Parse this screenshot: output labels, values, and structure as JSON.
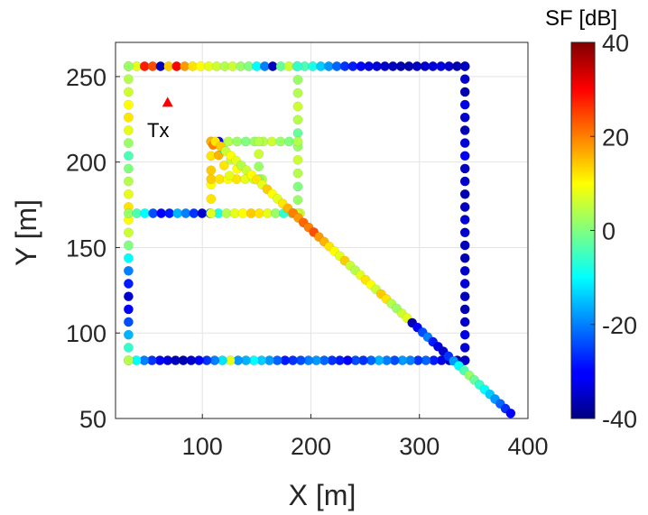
{
  "chart_data": {
    "type": "scatter",
    "xlabel": "X [m]",
    "ylabel": "Y [m]",
    "xlim": [
      20,
      400
    ],
    "ylim": [
      50,
      270
    ],
    "xticks": [
      100,
      200,
      300,
      400
    ],
    "yticks": [
      50,
      100,
      150,
      200,
      250
    ],
    "grid": true,
    "colorbar": {
      "label": "SF [dB]",
      "range": [
        -40,
        40
      ],
      "ticks": [
        40,
        20,
        0,
        -20,
        -40
      ],
      "colormap": "jet"
    },
    "transmitter": {
      "label": "Tx",
      "x": 68,
      "y": 235,
      "color": "#ff0000"
    },
    "segments": [
      {
        "name": "top-edge",
        "from": [
          32,
          256
        ],
        "to": [
          342,
          256
        ],
        "sf": [
          10,
          8,
          28,
          24,
          -35,
          14,
          30,
          18,
          12,
          10,
          8,
          6,
          4,
          6,
          2,
          0,
          -10,
          -20,
          -35,
          -2,
          6,
          0,
          -4,
          -8,
          -14,
          -18,
          -22,
          -26,
          -28,
          -30,
          -32,
          -33,
          -34,
          -35,
          -36,
          -36,
          -35,
          -34,
          -33,
          -32,
          -34,
          -36,
          -35
        ]
      },
      {
        "name": "right-edge",
        "from": [
          342,
          256
        ],
        "to": [
          342,
          84
        ],
        "sf": [
          -35,
          -34,
          -36,
          -32,
          -34,
          -36,
          -33,
          -31,
          -35,
          -34,
          -36,
          -35,
          -33,
          -34,
          -35,
          -36,
          -34,
          -33,
          -35,
          -36,
          -34,
          -32,
          -33,
          -35
        ]
      },
      {
        "name": "bottom-edge",
        "from": [
          342,
          84
        ],
        "to": [
          32,
          84
        ],
        "sf": [
          -34,
          -36,
          -35,
          -32,
          -28,
          -22,
          -26,
          -20,
          -18,
          -24,
          -20,
          -16,
          -22,
          -26,
          -24,
          -30,
          -28,
          -26,
          -22,
          -18,
          -20,
          -24,
          -26,
          -28,
          -22,
          -18,
          -14,
          -10,
          -16,
          -18,
          8,
          -12,
          -20,
          -26,
          -30,
          -34,
          -36,
          -35,
          -33,
          -30,
          -26,
          -20,
          -10,
          4
        ]
      },
      {
        "name": "left-edge",
        "from": [
          32,
          84
        ],
        "to": [
          32,
          256
        ],
        "sf": [
          4,
          -6,
          -16,
          -24,
          -30,
          -34,
          -28,
          -20,
          -10,
          0,
          6,
          10,
          12,
          8,
          4,
          0,
          -4,
          2,
          8,
          12,
          10,
          6,
          4,
          2
        ]
      },
      {
        "name": "mid-horizontal",
        "from": [
          32,
          170
        ],
        "to": [
          190,
          170
        ],
        "sf": [
          2,
          -4,
          -10,
          -24,
          -30,
          -28,
          -16,
          -20,
          -26,
          -34,
          -24,
          -8,
          4,
          8,
          10,
          14,
          12,
          8,
          2,
          -6,
          -4,
          6
        ]
      },
      {
        "name": "inner-vertical",
        "from": [
          188,
          170
        ],
        "to": [
          188,
          256
        ],
        "sf": [
          6,
          2,
          0,
          4,
          6,
          2,
          -2,
          4,
          6,
          4,
          2,
          -6
        ]
      },
      {
        "name": "small-square-top",
        "from": [
          108,
          212
        ],
        "to": [
          188,
          212
        ],
        "sf": [
          14,
          10,
          4,
          2,
          0,
          2,
          4,
          6,
          2,
          0,
          4
        ]
      },
      {
        "name": "small-square-left",
        "from": [
          108,
          212
        ],
        "to": [
          108,
          170
        ],
        "sf": [
          16,
          12,
          14,
          10,
          12,
          8
        ]
      },
      {
        "name": "small-square-mid",
        "from": [
          108,
          190
        ],
        "to": [
          155,
          190
        ],
        "sf": [
          14,
          12,
          10,
          12,
          8,
          6,
          4
        ]
      },
      {
        "name": "small-square-vert",
        "from": [
          152,
          212
        ],
        "to": [
          152,
          190
        ],
        "sf": [
          4,
          6,
          2,
          0
        ]
      },
      {
        "name": "small-diag-a",
        "from": [
          110,
          210
        ],
        "to": [
          125,
          192
        ],
        "sf": [
          20,
          16,
          12,
          8
        ]
      },
      {
        "name": "small-diag-b",
        "from": [
          115,
          212
        ],
        "to": [
          132,
          196
        ],
        "sf": [
          -30,
          -10,
          6,
          10
        ]
      },
      {
        "name": "diagonal",
        "from": [
          112,
          212
        ],
        "to": [
          384,
          53
        ],
        "sf": [
          12,
          14,
          6,
          10,
          8,
          4,
          6,
          10,
          12,
          8,
          14,
          10,
          8,
          12,
          16,
          20,
          18,
          22,
          20,
          24,
          18,
          16,
          12,
          10,
          8,
          14,
          6,
          4,
          8,
          12,
          10,
          6,
          14,
          12,
          4,
          2,
          6,
          8,
          -36,
          -30,
          -24,
          -20,
          -28,
          -32,
          -34,
          -26,
          -18,
          -10,
          -4,
          2,
          -2,
          -6,
          -10,
          -14,
          -18,
          -22,
          -26,
          -30
        ]
      }
    ]
  }
}
